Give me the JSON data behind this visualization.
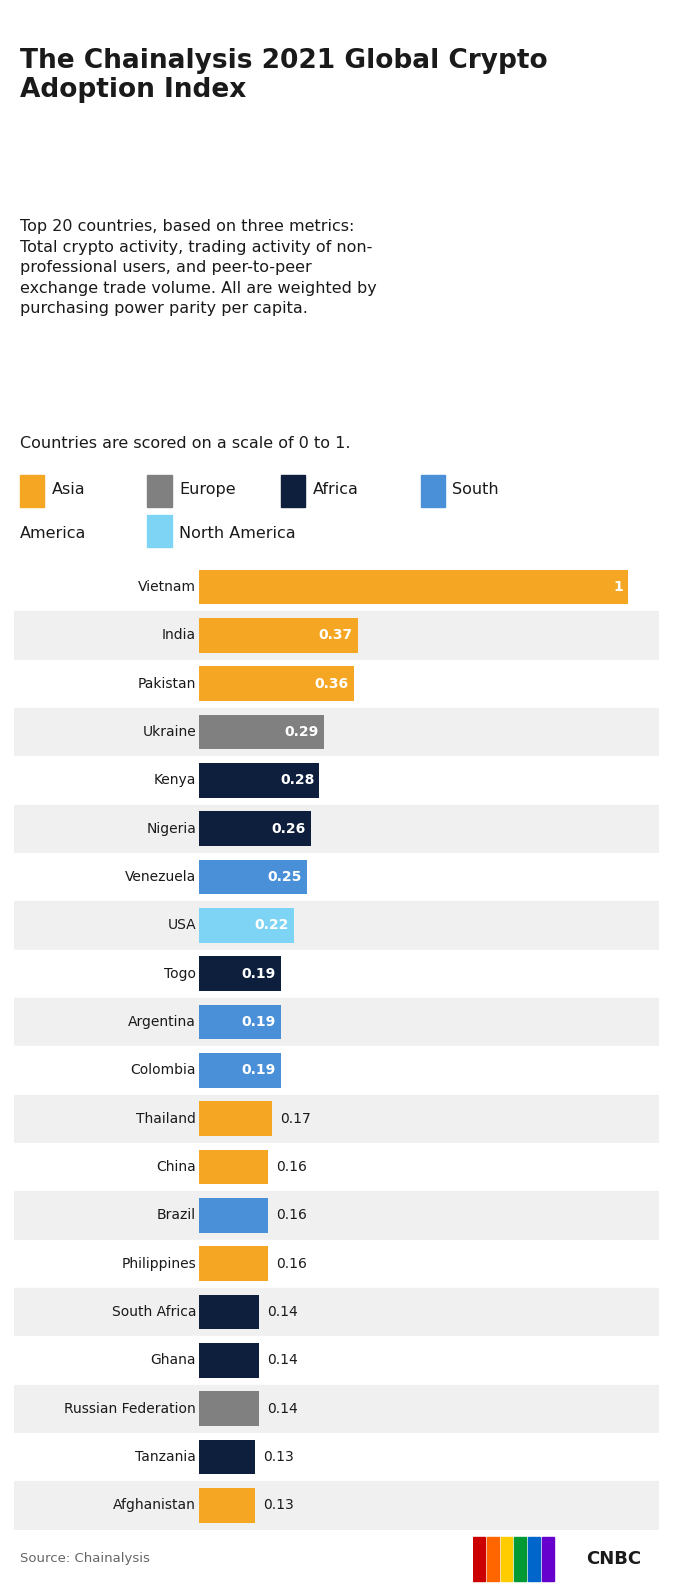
{
  "title": "The Chainalysis 2021 Global Crypto\nAdoption Index",
  "subtitle": "Top 20 countries, based on three metrics:\nTotal crypto activity, trading activity of non-\nprofessional users, and peer-to-peer\nexchange trade volume. All are weighted by\npurchasing power parity per capita.",
  "note": "Countries are scored on a scale of 0 to 1.",
  "source": "Source: Chainalysis",
  "countries": [
    "Vietnam",
    "India",
    "Pakistan",
    "Ukraine",
    "Kenya",
    "Nigeria",
    "Venezuela",
    "USA",
    "Togo",
    "Argentina",
    "Colombia",
    "Thailand",
    "China",
    "Brazil",
    "Philippines",
    "South Africa",
    "Ghana",
    "Russian Federation",
    "Tanzania",
    "Afghanistan"
  ],
  "values": [
    1.0,
    0.37,
    0.36,
    0.29,
    0.28,
    0.26,
    0.25,
    0.22,
    0.19,
    0.19,
    0.19,
    0.17,
    0.16,
    0.16,
    0.16,
    0.14,
    0.14,
    0.14,
    0.13,
    0.13
  ],
  "value_labels": [
    "1",
    "0.37",
    "0.36",
    "0.29",
    "0.28",
    "0.26",
    "0.25",
    "0.22",
    "0.19",
    "0.19",
    "0.19",
    "0.17",
    "0.16",
    "0.16",
    "0.16",
    "0.14",
    "0.14",
    "0.14",
    "0.13",
    "0.13"
  ],
  "colors": [
    "#F5A623",
    "#F5A623",
    "#F5A623",
    "#808080",
    "#0D1F3C",
    "#0D1F3C",
    "#4A90D9",
    "#7ED4F5",
    "#0D1F3C",
    "#4A90D9",
    "#4A90D9",
    "#F5A623",
    "#F5A623",
    "#4A90D9",
    "#F5A623",
    "#0D1F3C",
    "#0D1F3C",
    "#808080",
    "#0D1F3C",
    "#F5A623"
  ],
  "inside_label": [
    true,
    true,
    true,
    true,
    true,
    true,
    true,
    true,
    true,
    true,
    true,
    false,
    false,
    false,
    false,
    false,
    false,
    false,
    false,
    false
  ],
  "bg_color": "#FFFFFF",
  "row_alt_color": "#F0F0F0",
  "text_color_dark": "#1A1A1A",
  "xlim": [
    0,
    1.08
  ],
  "label_inside_threshold": 0.19
}
